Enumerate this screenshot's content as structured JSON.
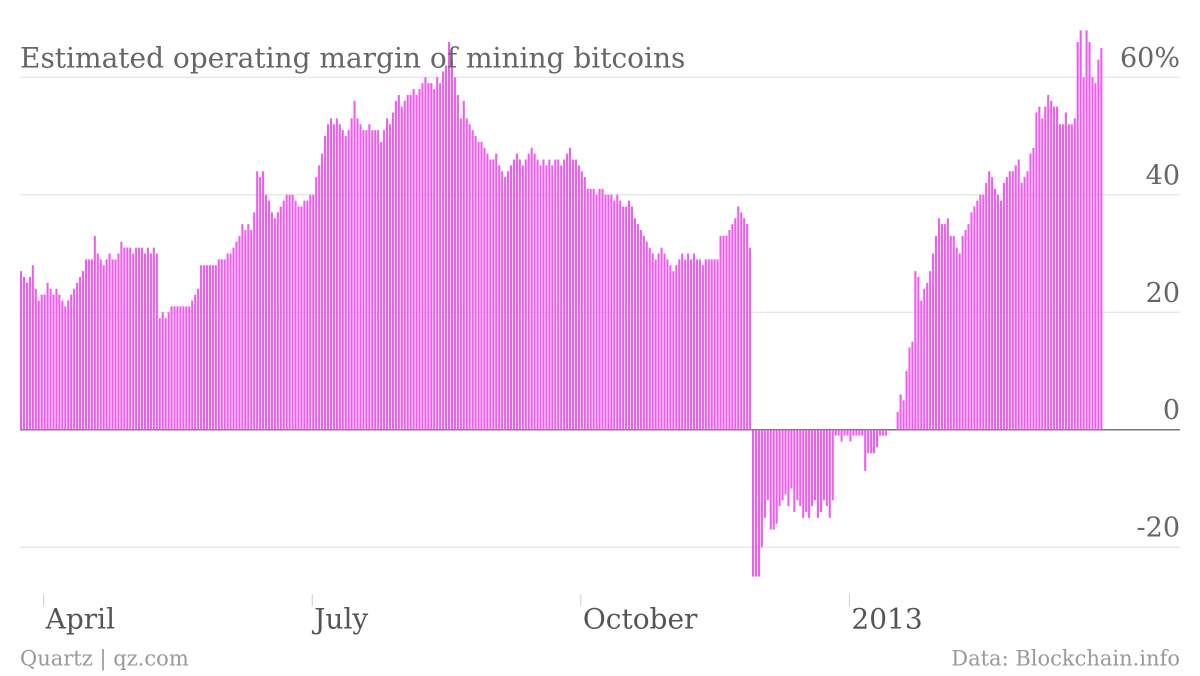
{
  "chart_data": {
    "type": "bar",
    "title": "Estimated operating margin of mining bitcoins",
    "source_left": "Quartz | qz.com",
    "source_right": "Data: Blockchain.info",
    "color": "#ef5cef",
    "values": [
      27,
      26,
      25,
      26,
      28,
      24,
      22,
      23,
      23,
      25,
      24,
      23,
      24,
      23,
      22,
      21,
      22,
      23,
      24,
      25,
      26,
      27,
      29,
      29,
      29,
      33,
      30,
      29,
      28,
      29,
      30,
      29,
      29,
      30,
      32,
      31,
      31,
      31,
      30,
      31,
      31,
      31,
      30,
      31,
      30,
      31,
      30,
      19,
      20,
      19,
      20,
      21,
      21,
      21,
      21,
      21,
      21,
      21,
      22,
      23,
      24,
      28,
      28,
      28,
      28,
      28,
      28,
      29,
      29,
      29,
      30,
      30,
      31,
      32,
      33,
      35,
      34,
      35,
      34,
      37,
      44,
      43,
      44,
      40,
      39,
      37,
      36,
      37,
      38,
      39,
      40,
      40,
      40,
      39,
      38,
      38,
      39,
      39,
      40,
      40,
      43,
      45,
      47,
      50,
      52,
      53,
      52,
      53,
      52,
      51,
      50,
      51,
      53,
      56,
      53,
      52,
      51,
      51,
      52,
      51,
      51,
      51,
      49,
      51,
      53,
      52,
      54,
      56,
      57,
      55,
      56,
      57,
      57,
      58,
      57,
      58,
      59,
      60,
      59,
      59,
      58,
      60,
      59,
      61,
      62,
      66,
      63,
      60,
      57,
      53,
      56,
      53,
      52,
      51,
      50,
      49,
      49,
      48,
      47,
      46,
      46,
      47,
      45,
      44,
      43,
      44,
      45,
      46,
      47,
      46,
      45,
      46,
      47,
      48,
      47,
      46,
      45,
      46,
      45,
      46,
      45,
      46,
      46,
      45,
      46,
      47,
      48,
      46,
      46,
      45,
      44,
      43,
      41,
      41,
      41,
      40,
      41,
      41,
      40,
      40,
      40,
      39,
      40,
      39,
      38,
      38,
      39,
      38,
      36,
      35,
      34,
      33,
      32,
      31,
      30,
      29,
      30,
      31,
      30,
      29,
      28,
      27,
      28,
      29,
      30,
      29,
      30,
      29,
      30,
      29,
      29,
      28,
      29,
      29,
      29,
      29,
      29,
      33,
      33,
      33,
      34,
      35,
      36,
      38,
      37,
      36,
      35,
      31,
      -25,
      -25,
      -25,
      -20,
      -15,
      -12,
      -17,
      -17,
      -16,
      -13,
      -12,
      -11,
      -13,
      -10,
      -14,
      -12,
      -13,
      -15,
      -14,
      -15,
      -13,
      -12,
      -15,
      -14,
      -12,
      -13,
      -15,
      -12,
      -1,
      -1,
      -2,
      -1,
      -1,
      -2,
      -1,
      -1,
      -1,
      -1,
      -7,
      -4,
      -4,
      -4,
      -3,
      -1,
      -1,
      -1,
      0,
      0,
      0,
      3,
      6,
      5,
      10,
      14,
      15,
      27,
      26,
      22,
      24,
      25,
      27,
      30,
      33,
      36,
      35,
      35,
      36,
      33,
      33,
      31,
      30,
      33,
      34,
      35,
      37,
      38,
      39,
      40,
      40,
      42,
      44,
      43,
      41,
      40,
      39,
      42,
      43,
      44,
      44,
      45,
      46,
      42,
      43,
      44,
      47,
      48,
      54,
      55,
      53,
      55,
      57,
      56,
      55,
      55,
      52,
      52,
      54,
      52,
      52,
      53,
      66,
      68,
      60,
      68,
      66,
      60,
      59,
      63,
      65
    ],
    "xlim": [
      0,
      393
    ],
    "xticks": [
      {
        "value": 8,
        "label": "April"
      },
      {
        "value": 99,
        "label": "July"
      },
      {
        "value": 190,
        "label": "October"
      },
      {
        "value": 281,
        "label": "2013"
      }
    ],
    "ylim": [
      -28,
      68
    ],
    "yticks": [
      -20,
      0,
      20,
      40,
      {
        "value": 60,
        "label": "60%"
      }
    ],
    "grid": true
  }
}
